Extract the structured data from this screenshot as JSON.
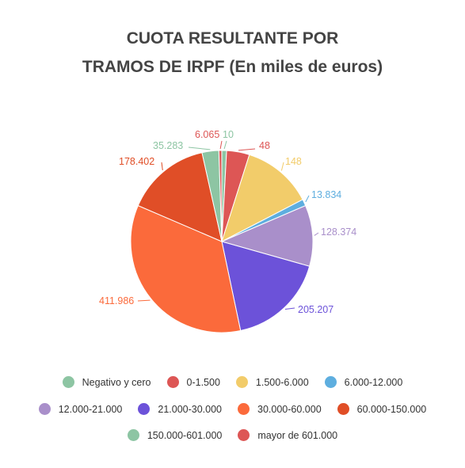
{
  "chart_data": {
    "type": "pie",
    "title_line1": "CUOTA RESULTANTE POR",
    "title_line2": "TRAMOS DE IRPF (En miles de euros)",
    "slices": [
      {
        "label": "Negativo y cero",
        "value": 10,
        "value_label": "10",
        "color": "#8dc5a3"
      },
      {
        "label": "0-1.500",
        "value": 48,
        "value_label": "48",
        "color": "#dd5655"
      },
      {
        "label": "1.500-6.000",
        "value": 148,
        "value_label": "148",
        "color": "#f2cc6a"
      },
      {
        "label": "6.000-12.000",
        "value": 13.834,
        "value_label": "13.834",
        "color": "#5eaedf"
      },
      {
        "label": "12.000-21.000",
        "value": 128.374,
        "value_label": "128.374",
        "color": "#a98fca"
      },
      {
        "label": "21.000-30.000",
        "value": 205.207,
        "value_label": "205.207",
        "color": "#6c52d9"
      },
      {
        "label": "30.000-60.000",
        "value": 411.986,
        "value_label": "411.986",
        "color": "#fb6a3b"
      },
      {
        "label": "60.000-150.000",
        "value": 178.402,
        "value_label": "178.402",
        "color": "#e04e27"
      },
      {
        "label": "150.000-601.000",
        "value": 35.283,
        "value_label": "35.283",
        "color": "#8dc5a3"
      },
      {
        "label": "mayor de 601.000",
        "value": 6.065,
        "value_label": "6.065",
        "color": "#dd5655"
      }
    ],
    "legend_placement": "bottom"
  }
}
